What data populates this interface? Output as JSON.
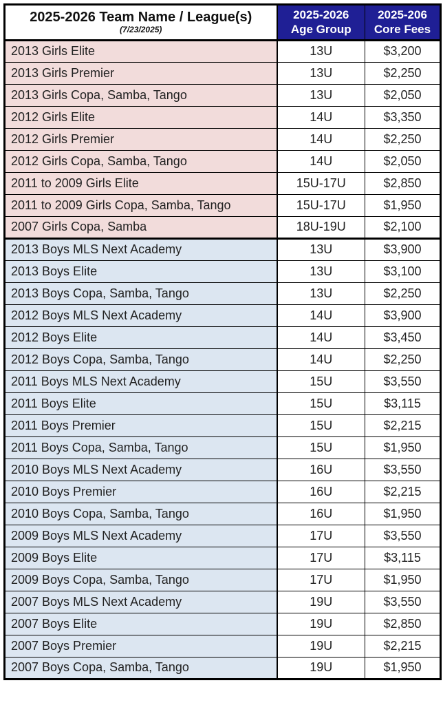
{
  "colors": {
    "header_bg": "#1f1f95",
    "header_text": "#ffffff",
    "girls_row_bg": "#f2dcdb",
    "boys_row_bg": "#dce6f1",
    "value_cell_bg": "#ffffff",
    "border_color": "#000000",
    "text_color": "#222222"
  },
  "table": {
    "header": {
      "team_column_title": "2025-2026 Team Name / League(s)",
      "team_column_subtitle": "(7/23/2025)",
      "age_column_line1": "2025-2026",
      "age_column_line2": "Age Group",
      "fee_column_line1": "2025-206",
      "fee_column_line2": "Core Fees"
    },
    "rows": [
      {
        "group": "girls",
        "name": "2013 Girls Elite",
        "age_group": "13U",
        "core_fee": "$3,200"
      },
      {
        "group": "girls",
        "name": "2013 Girls Premier",
        "age_group": "13U",
        "core_fee": "$2,250"
      },
      {
        "group": "girls",
        "name": "2013 Girls Copa, Samba, Tango",
        "age_group": "13U",
        "core_fee": "$2,050"
      },
      {
        "group": "girls",
        "name": "2012 Girls Elite",
        "age_group": "14U",
        "core_fee": "$3,350"
      },
      {
        "group": "girls",
        "name": "2012 Girls Premier",
        "age_group": "14U",
        "core_fee": "$2,250"
      },
      {
        "group": "girls",
        "name": "2012 Girls Copa, Samba, Tango",
        "age_group": "14U",
        "core_fee": "$2,050"
      },
      {
        "group": "girls",
        "name": "2011 to 2009 Girls Elite",
        "age_group": "15U-17U",
        "core_fee": "$2,850"
      },
      {
        "group": "girls",
        "name": "2011 to 2009 Girls Copa, Samba, Tango",
        "age_group": "15U-17U",
        "core_fee": "$1,950"
      },
      {
        "group": "girls",
        "name": "2007 Girls Copa, Samba",
        "age_group": "18U-19U",
        "core_fee": "$2,100"
      },
      {
        "group": "boys",
        "name": "2013 Boys MLS Next Academy",
        "age_group": "13U",
        "core_fee": "$3,900"
      },
      {
        "group": "boys",
        "name": "2013 Boys Elite",
        "age_group": "13U",
        "core_fee": "$3,100"
      },
      {
        "group": "boys",
        "name": "2013 Boys Copa, Samba, Tango",
        "age_group": "13U",
        "core_fee": "$2,250"
      },
      {
        "group": "boys",
        "name": "2012 Boys MLS Next Academy",
        "age_group": "14U",
        "core_fee": "$3,900"
      },
      {
        "group": "boys",
        "name": "2012 Boys Elite",
        "age_group": "14U",
        "core_fee": "$3,450"
      },
      {
        "group": "boys",
        "name": "2012 Boys Copa, Samba, Tango",
        "age_group": "14U",
        "core_fee": "$2,250"
      },
      {
        "group": "boys",
        "name": "2011 Boys MLS Next Academy",
        "age_group": "15U",
        "core_fee": "$3,550"
      },
      {
        "group": "boys",
        "name": "2011 Boys Elite",
        "age_group": "15U",
        "core_fee": "$3,115"
      },
      {
        "group": "boys",
        "name": "2011 Boys Premier",
        "age_group": "15U",
        "core_fee": "$2,215"
      },
      {
        "group": "boys",
        "name": "2011 Boys Copa, Samba, Tango",
        "age_group": "15U",
        "core_fee": "$1,950"
      },
      {
        "group": "boys",
        "name": "2010 Boys MLS Next Academy",
        "age_group": "16U",
        "core_fee": "$3,550"
      },
      {
        "group": "boys",
        "name": "2010 Boys Premier",
        "age_group": "16U",
        "core_fee": "$2,215"
      },
      {
        "group": "boys",
        "name": "2010 Boys Copa, Samba, Tango",
        "age_group": "16U",
        "core_fee": "$1,950"
      },
      {
        "group": "boys",
        "name": "2009 Boys MLS Next Academy",
        "age_group": "17U",
        "core_fee": "$3,550"
      },
      {
        "group": "boys",
        "name": "2009 Boys Elite",
        "age_group": "17U",
        "core_fee": "$3,115"
      },
      {
        "group": "boys",
        "name": "2009 Boys Copa, Samba, Tango",
        "age_group": "17U",
        "core_fee": "$1,950"
      },
      {
        "group": "boys",
        "name": "2007 Boys MLS Next Academy",
        "age_group": "19U",
        "core_fee": "$3,550"
      },
      {
        "group": "boys",
        "name": "2007 Boys Elite",
        "age_group": "19U",
        "core_fee": "$2,850"
      },
      {
        "group": "boys",
        "name": "2007 Boys Premier",
        "age_group": "19U",
        "core_fee": "$2,215"
      },
      {
        "group": "boys",
        "name": "2007 Boys Copa, Samba, Tango",
        "age_group": "19U",
        "core_fee": "$1,950"
      }
    ]
  }
}
